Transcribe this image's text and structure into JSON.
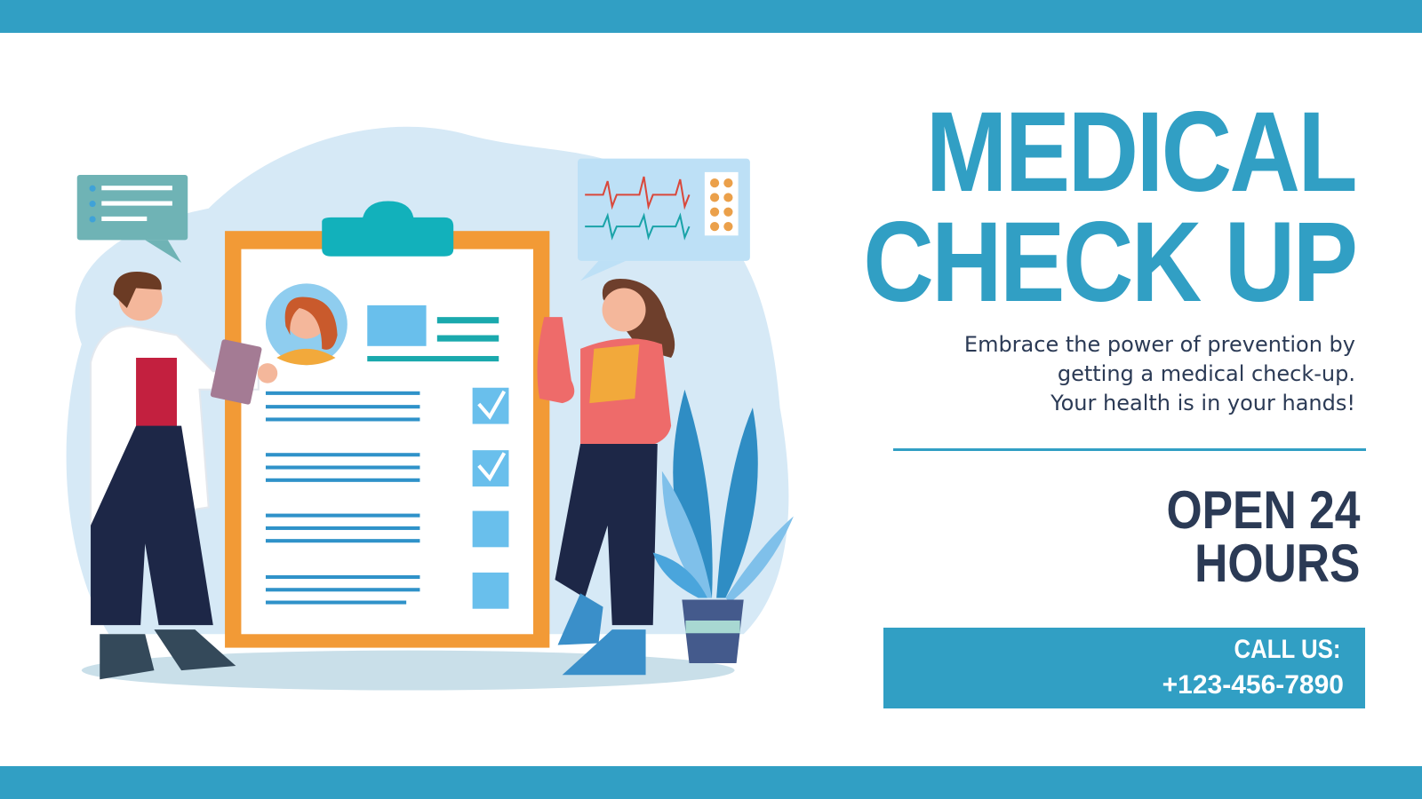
{
  "headline": {
    "line1": "MEDICAL",
    "line2": "CHECK UP"
  },
  "tagline": {
    "line1": "Embrace the power of prevention by",
    "line2": "getting a medical check-up.",
    "line3": "Your health is in your hands!"
  },
  "hours": {
    "line1": "OPEN 24",
    "line2": "HOURS"
  },
  "contact": {
    "label": "CALL US:",
    "phone": "+123-456-7890"
  },
  "colors": {
    "accent": "#319fc4",
    "text_dark": "#2b3a55",
    "clipboard_orange": "#f29a36",
    "teal": "#12b1bb"
  }
}
